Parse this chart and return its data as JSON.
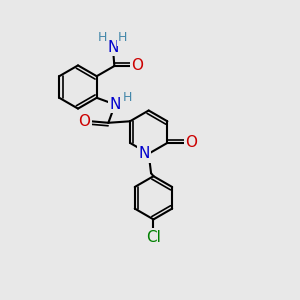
{
  "background_color": "#e8e8e8",
  "atom_colors": {
    "C": "#000000",
    "N": "#0000cc",
    "O": "#cc0000",
    "Cl": "#008000",
    "H": "#4488aa"
  },
  "bond_color": "#000000",
  "font_size_atoms": 11,
  "font_size_small": 9
}
